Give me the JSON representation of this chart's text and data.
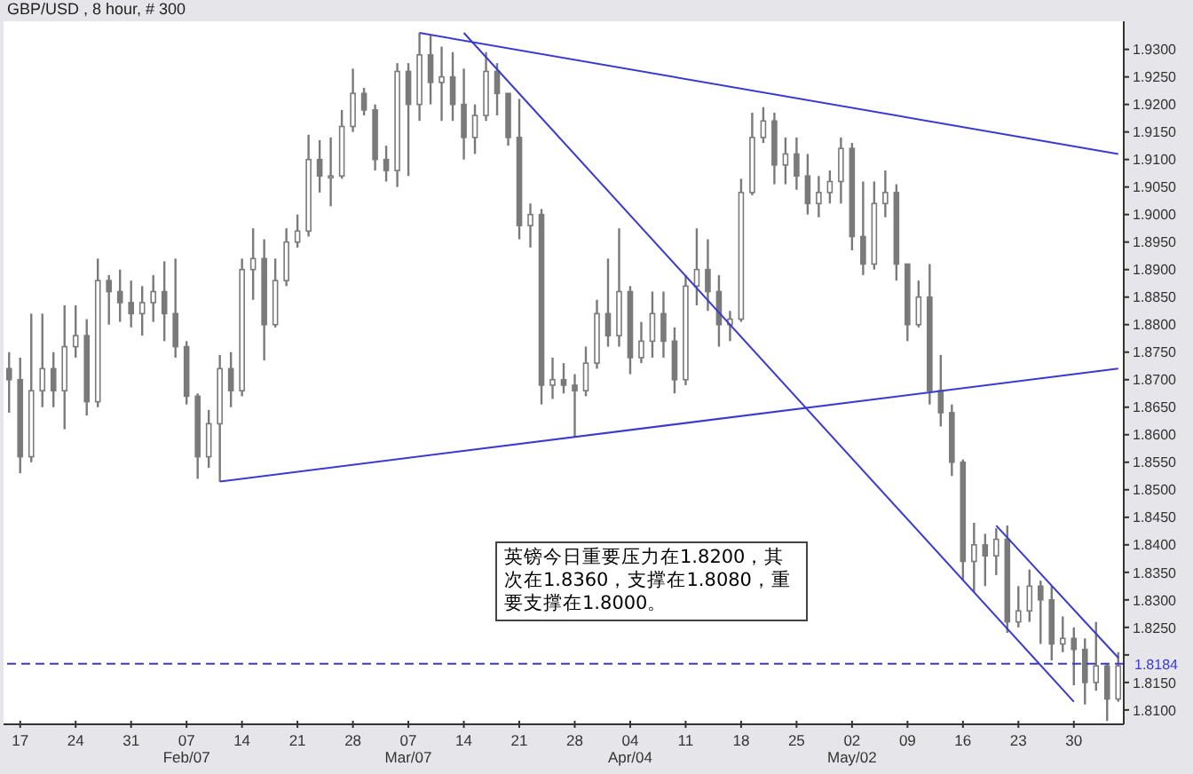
{
  "chart_data": {
    "type": "candlestick",
    "title": "GBP/USD , 8 hour, # 300",
    "categories": [
      null,
      "17",
      null,
      null,
      null,
      null,
      "24",
      null,
      null,
      null,
      null,
      "31",
      null,
      null,
      null,
      null,
      "07\nFeb/07",
      null,
      null,
      null,
      null,
      "14",
      null,
      null,
      null,
      null,
      "21",
      null,
      null,
      null,
      null,
      "28",
      null,
      null,
      null,
      null,
      "07\nMar/07",
      null,
      null,
      null,
      null,
      "14",
      null,
      null,
      null,
      null,
      "21",
      null,
      null,
      null,
      null,
      "28",
      null,
      null,
      null,
      null,
      "04\nApr/04",
      null,
      null,
      null,
      null,
      "11",
      null,
      null,
      null,
      null,
      "18",
      null,
      null,
      null,
      null,
      "25",
      null,
      null,
      null,
      null,
      "02\nMay/02",
      null,
      null,
      null,
      null,
      "09",
      null,
      null,
      null,
      null,
      "16",
      null,
      null,
      null,
      null,
      "23",
      null,
      null,
      null,
      null,
      "30",
      null,
      null,
      null,
      null
    ],
    "ohlc": [
      [
        1.872,
        1.875,
        1.864,
        1.87
      ],
      [
        1.87,
        1.874,
        1.853,
        1.856
      ],
      [
        1.856,
        1.882,
        1.855,
        1.868
      ],
      [
        1.868,
        1.882,
        1.865,
        1.872
      ],
      [
        1.872,
        1.875,
        1.865,
        1.868
      ],
      [
        1.868,
        1.8835,
        1.861,
        1.876
      ],
      [
        1.876,
        1.8835,
        1.874,
        1.878
      ],
      [
        1.878,
        1.881,
        1.8635,
        1.866
      ],
      [
        1.866,
        1.892,
        1.865,
        1.888
      ],
      [
        1.888,
        1.889,
        1.88,
        1.886
      ],
      [
        1.886,
        1.89,
        1.8805,
        1.884
      ],
      [
        1.884,
        1.888,
        1.8795,
        1.882
      ],
      [
        1.882,
        1.887,
        1.878,
        1.884
      ],
      [
        1.884,
        1.889,
        1.8805,
        1.886
      ],
      [
        1.886,
        1.8915,
        1.877,
        1.882
      ],
      [
        1.882,
        1.892,
        1.874,
        1.876
      ],
      [
        1.876,
        1.877,
        1.8655,
        1.867
      ],
      [
        1.867,
        1.8675,
        1.852,
        1.856
      ],
      [
        1.856,
        1.8645,
        1.854,
        1.862
      ],
      [
        1.862,
        1.8745,
        1.8515,
        1.872
      ],
      [
        1.872,
        1.875,
        1.865,
        1.868
      ],
      [
        1.868,
        1.892,
        1.867,
        1.89
      ],
      [
        1.89,
        1.8975,
        1.8845,
        1.892
      ],
      [
        1.892,
        1.8955,
        1.8735,
        1.88
      ],
      [
        1.88,
        1.892,
        1.8795,
        1.888
      ],
      [
        1.888,
        1.8975,
        1.887,
        1.895
      ],
      [
        1.895,
        1.9,
        1.894,
        1.897
      ],
      [
        1.897,
        1.9145,
        1.896,
        1.91
      ],
      [
        1.91,
        1.9135,
        1.904,
        1.907
      ],
      [
        1.907,
        1.914,
        1.9015,
        1.907
      ],
      [
        1.907,
        1.919,
        1.9065,
        1.916
      ],
      [
        1.916,
        1.9265,
        1.915,
        1.922
      ],
      [
        1.922,
        1.923,
        1.918,
        1.919
      ],
      [
        1.919,
        1.92,
        1.908,
        1.91
      ],
      [
        1.91,
        1.9125,
        1.906,
        1.908
      ],
      [
        1.908,
        1.9275,
        1.905,
        1.926
      ],
      [
        1.926,
        1.9275,
        1.907,
        1.92
      ],
      [
        1.92,
        1.933,
        1.917,
        1.929
      ],
      [
        1.929,
        1.9325,
        1.92,
        1.924
      ],
      [
        1.924,
        1.9305,
        1.917,
        1.925
      ],
      [
        1.925,
        1.9295,
        1.917,
        1.92
      ],
      [
        1.92,
        1.9265,
        1.91,
        1.914
      ],
      [
        1.914,
        1.92,
        1.911,
        1.918
      ],
      [
        1.918,
        1.9295,
        1.917,
        1.926
      ],
      [
        1.926,
        1.9275,
        1.918,
        1.922
      ],
      [
        1.922,
        1.922,
        1.9125,
        1.914
      ],
      [
        1.914,
        1.921,
        1.8955,
        1.898
      ],
      [
        1.898,
        1.902,
        1.894,
        1.9
      ],
      [
        1.9,
        1.901,
        1.8655,
        1.869
      ],
      [
        1.869,
        1.874,
        1.8665,
        1.87
      ],
      [
        1.87,
        1.873,
        1.8675,
        1.869
      ],
      [
        1.869,
        1.871,
        1.8595,
        1.868
      ],
      [
        1.868,
        1.876,
        1.867,
        1.873
      ],
      [
        1.873,
        1.8845,
        1.872,
        1.882
      ],
      [
        1.882,
        1.892,
        1.876,
        1.878
      ],
      [
        1.878,
        1.8975,
        1.876,
        1.886
      ],
      [
        1.886,
        1.887,
        1.871,
        1.874
      ],
      [
        1.874,
        1.8805,
        1.873,
        1.877
      ],
      [
        1.877,
        1.886,
        1.874,
        1.882
      ],
      [
        1.882,
        1.886,
        1.874,
        1.877
      ],
      [
        1.877,
        1.8795,
        1.8675,
        1.87
      ],
      [
        1.87,
        1.889,
        1.869,
        1.887
      ],
      [
        1.887,
        1.8975,
        1.8835,
        1.89
      ],
      [
        1.89,
        1.8955,
        1.8825,
        1.886
      ],
      [
        1.886,
        1.889,
        1.876,
        1.88
      ],
      [
        1.88,
        1.8825,
        1.877,
        1.881
      ],
      [
        1.881,
        1.9065,
        1.8805,
        1.904
      ],
      [
        1.904,
        1.9185,
        1.9035,
        1.914
      ],
      [
        1.914,
        1.9195,
        1.913,
        1.917
      ],
      [
        1.917,
        1.9185,
        1.9055,
        1.909
      ],
      [
        1.909,
        1.914,
        1.9055,
        1.911
      ],
      [
        1.911,
        1.914,
        1.9045,
        1.907
      ],
      [
        1.907,
        1.911,
        1.9,
        1.902
      ],
      [
        1.902,
        1.907,
        1.8995,
        1.904
      ],
      [
        1.904,
        1.908,
        1.902,
        1.906
      ],
      [
        1.906,
        1.914,
        1.902,
        1.912
      ],
      [
        1.912,
        1.913,
        1.8935,
        1.896
      ],
      [
        1.896,
        1.906,
        1.889,
        1.891
      ],
      [
        1.891,
        1.906,
        1.89,
        1.902
      ],
      [
        1.902,
        1.908,
        1.8995,
        1.904
      ],
      [
        1.904,
        1.9055,
        1.888,
        1.891
      ],
      [
        1.891,
        1.891,
        1.877,
        1.88
      ],
      [
        1.88,
        1.888,
        1.8795,
        1.885
      ],
      [
        1.885,
        1.891,
        1.8655,
        1.868
      ],
      [
        1.868,
        1.8745,
        1.8615,
        1.864
      ],
      [
        1.864,
        1.8655,
        1.8525,
        1.855
      ],
      [
        1.855,
        1.8555,
        1.8335,
        1.837
      ],
      [
        1.837,
        1.844,
        1.8315,
        1.84
      ],
      [
        1.84,
        1.842,
        1.8325,
        1.838
      ],
      [
        1.838,
        1.843,
        1.8345,
        1.841
      ],
      [
        1.841,
        1.8435,
        1.824,
        1.826
      ],
      [
        1.826,
        1.8325,
        1.825,
        1.828
      ],
      [
        1.828,
        1.8355,
        1.826,
        1.8325
      ],
      [
        1.8325,
        1.8335,
        1.822,
        1.83
      ],
      [
        1.83,
        1.8325,
        1.819,
        1.822
      ],
      [
        1.822,
        1.827,
        1.8205,
        1.823
      ],
      [
        1.823,
        1.825,
        1.8145,
        1.821
      ],
      [
        1.821,
        1.823,
        1.811,
        1.815
      ],
      [
        1.815,
        1.826,
        1.8135,
        1.818
      ],
      [
        1.818,
        1.8185,
        1.808,
        1.812
      ],
      [
        1.812,
        1.8205,
        1.8115,
        1.818
      ]
    ],
    "color": "#7a7a7a",
    "series": [
      {
        "type": "line",
        "color": "#3a3ad0",
        "values": [
          null,
          null,
          null,
          null,
          null,
          null,
          null,
          null,
          null,
          null,
          null,
          null,
          null,
          null,
          null,
          null,
          null,
          null,
          null,
          null,
          null,
          null,
          null,
          null,
          null,
          null,
          null,
          null,
          null,
          null,
          null,
          null,
          null,
          null,
          null,
          null,
          null,
          1.933,
          null,
          null,
          null,
          null,
          null,
          null,
          null,
          null,
          null,
          null,
          null,
          null,
          null,
          null,
          null,
          null,
          null,
          null,
          null,
          null,
          null,
          null,
          null,
          null,
          null,
          null,
          null,
          null,
          null,
          null,
          null,
          null,
          null,
          null,
          null,
          null,
          null,
          null,
          null,
          null,
          null,
          null,
          null,
          null,
          null,
          null,
          null,
          null,
          null,
          null,
          null,
          null,
          null,
          null,
          null,
          null,
          null,
          null,
          null,
          null,
          null,
          null,
          1.911
        ]
      },
      {
        "type": "line",
        "color": "#3a3ad0",
        "values": [
          null,
          null,
          null,
          null,
          null,
          null,
          null,
          null,
          null,
          null,
          null,
          null,
          null,
          null,
          null,
          null,
          null,
          null,
          null,
          null,
          null,
          null,
          null,
          null,
          null,
          null,
          null,
          null,
          null,
          null,
          null,
          null,
          null,
          null,
          null,
          null,
          null,
          null,
          null,
          null,
          null,
          1.933,
          null,
          null,
          null,
          null,
          null,
          null,
          null,
          null,
          null,
          null,
          null,
          null,
          null,
          null,
          null,
          null,
          null,
          null,
          null,
          null,
          null,
          null,
          null,
          null,
          null,
          null,
          null,
          null,
          null,
          null,
          null,
          null,
          null,
          null,
          null,
          null,
          null,
          null,
          null,
          null,
          null,
          null,
          null,
          null,
          null,
          null,
          null,
          null,
          null,
          null,
          null,
          null,
          null,
          null,
          1.8115,
          null,
          null,
          null,
          null
        ]
      },
      {
        "type": "line",
        "color": "#3a3ad0",
        "values": [
          null,
          null,
          null,
          null,
          null,
          null,
          null,
          null,
          null,
          null,
          null,
          null,
          null,
          null,
          null,
          null,
          null,
          null,
          null,
          1.8515,
          null,
          null,
          null,
          null,
          null,
          null,
          null,
          null,
          null,
          null,
          null,
          null,
          null,
          null,
          null,
          null,
          null,
          null,
          null,
          null,
          null,
          null,
          null,
          null,
          null,
          null,
          null,
          null,
          null,
          null,
          null,
          null,
          null,
          null,
          null,
          null,
          null,
          null,
          null,
          null,
          null,
          null,
          null,
          null,
          null,
          null,
          null,
          null,
          null,
          null,
          null,
          null,
          null,
          null,
          null,
          null,
          null,
          null,
          null,
          null,
          null,
          null,
          null,
          null,
          null,
          null,
          null,
          null,
          null,
          null,
          null,
          null,
          null,
          null,
          null,
          null,
          null,
          null,
          null,
          null,
          1.872
        ]
      },
      {
        "type": "line",
        "color": "#3a3ad0",
        "values": [
          null,
          null,
          null,
          null,
          null,
          null,
          null,
          null,
          null,
          null,
          null,
          null,
          null,
          null,
          null,
          null,
          null,
          null,
          null,
          null,
          null,
          null,
          null,
          null,
          null,
          null,
          null,
          null,
          null,
          null,
          null,
          null,
          null,
          null,
          null,
          null,
          null,
          null,
          null,
          null,
          null,
          null,
          null,
          null,
          null,
          null,
          null,
          null,
          null,
          null,
          null,
          null,
          null,
          null,
          null,
          null,
          null,
          null,
          null,
          null,
          null,
          null,
          null,
          null,
          null,
          null,
          null,
          null,
          null,
          null,
          null,
          null,
          null,
          null,
          null,
          null,
          null,
          null,
          null,
          null,
          null,
          null,
          null,
          null,
          null,
          null,
          null,
          null,
          null,
          1.8435,
          null,
          null,
          null,
          null,
          null,
          null,
          null,
          null,
          null,
          null,
          1.8195
        ]
      }
    ],
    "ylim": [
      1.8074,
      1.9351
    ],
    "yticks": [
      {
        "value": 1.81,
        "label": "1.8100"
      },
      {
        "value": 1.815,
        "label": "1.8150"
      },
      {
        "value": 1.82,
        "label": null
      },
      {
        "value": 1.825,
        "label": "1.8250"
      },
      {
        "value": 1.83,
        "label": "1.8300"
      },
      {
        "value": 1.835,
        "label": "1.8350"
      },
      {
        "value": 1.84,
        "label": "1.8400"
      },
      {
        "value": 1.845,
        "label": "1.8450"
      },
      {
        "value": 1.85,
        "label": "1.8500"
      },
      {
        "value": 1.855,
        "label": "1.8550"
      },
      {
        "value": 1.86,
        "label": "1.8600"
      },
      {
        "value": 1.865,
        "label": "1.8650"
      },
      {
        "value": 1.87,
        "label": "1.8700"
      },
      {
        "value": 1.875,
        "label": "1.8750"
      },
      {
        "value": 1.88,
        "label": "1.8800"
      },
      {
        "value": 1.885,
        "label": "1.8850"
      },
      {
        "value": 1.89,
        "label": "1.8900"
      },
      {
        "value": 1.895,
        "label": "1.8950"
      },
      {
        "value": 1.9,
        "label": "1.9000"
      },
      {
        "value": 1.905,
        "label": "1.9050"
      },
      {
        "value": 1.91,
        "label": "1.9100"
      },
      {
        "value": 1.915,
        "label": "1.9150"
      },
      {
        "value": 1.92,
        "label": "1.9200"
      },
      {
        "value": 1.925,
        "label": "1.9250"
      },
      {
        "value": 1.93,
        "label": "1.9300"
      }
    ],
    "ref_lines": [
      {
        "axis": "y",
        "value": 1.8184,
        "label": "1.8184",
        "color": "#3a3ad0",
        "line_style": "dashed"
      }
    ],
    "annotations": [
      "英镑今日重要压力在1.8200，其次在1.8360，支撑在1.8080，重要支撑在1.8000。"
    ]
  }
}
